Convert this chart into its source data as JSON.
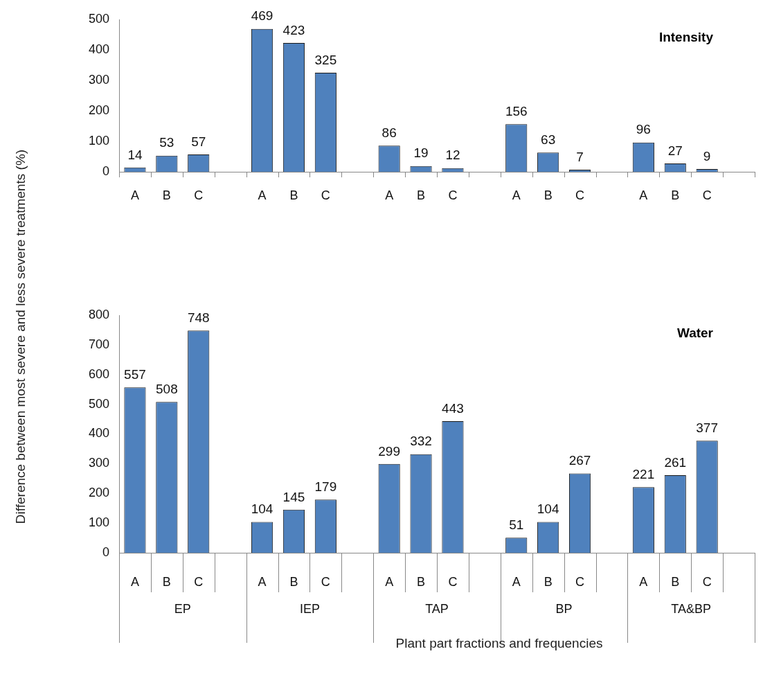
{
  "chart_data": [
    {
      "type": "bar",
      "title": "Intensity",
      "ylabel": "Difference between most severe and less severe treatments (%)",
      "categories": [
        "A",
        "B",
        "C",
        null,
        "A",
        "B",
        "C",
        null,
        "A",
        "B",
        "C",
        null,
        "A",
        "B",
        "C",
        null,
        "A",
        "B",
        "C",
        null
      ],
      "values": [
        14,
        53,
        57,
        null,
        469,
        423,
        325,
        null,
        86,
        19,
        12,
        null,
        156,
        63,
        7,
        null,
        96,
        27,
        9,
        null
      ],
      "color": "#4f81bd",
      "ylim": [
        0,
        500
      ],
      "yticks": [
        0,
        100,
        200,
        300,
        400,
        500
      ],
      "grid": false,
      "legend": false,
      "data_labels": true
    },
    {
      "type": "bar",
      "title": "Water",
      "xlabel": "Plant part fractions and frequencies",
      "categories": [
        "A",
        "B",
        "C",
        null,
        "A",
        "B",
        "C",
        null,
        "A",
        "B",
        "C",
        null,
        "A",
        "B",
        "C",
        null,
        "A",
        "B",
        "C",
        null
      ],
      "values": [
        557,
        508,
        748,
        null,
        104,
        145,
        179,
        null,
        299,
        332,
        443,
        null,
        51,
        104,
        267,
        null,
        221,
        261,
        377,
        null
      ],
      "color": "#4f81bd",
      "ylim": [
        0,
        800
      ],
      "yticks": [
        0,
        100,
        200,
        300,
        400,
        500,
        600,
        700,
        800
      ],
      "grid": false,
      "legend": false,
      "data_labels": true,
      "annotations": [
        "EP",
        "IEP",
        "TAP",
        "BP",
        "TA&BP"
      ]
    }
  ]
}
